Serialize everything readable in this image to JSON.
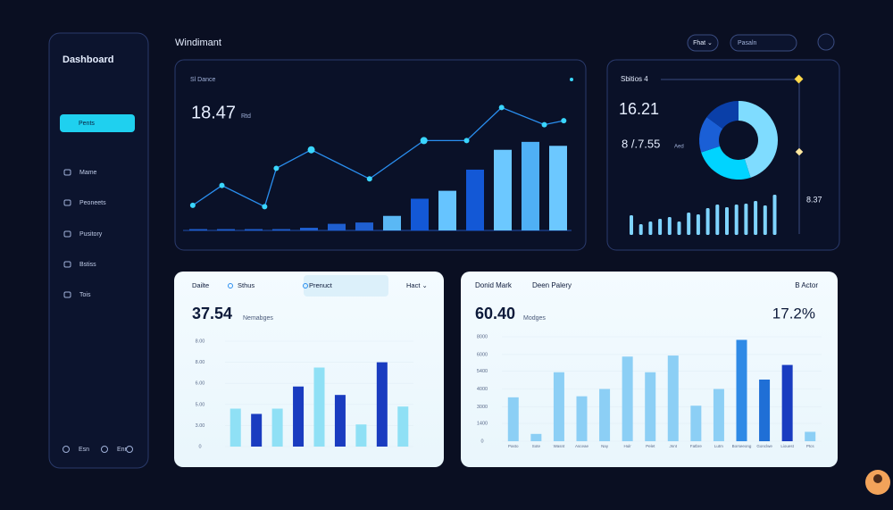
{
  "header": {
    "title": "Windimant",
    "filter": "Fhat ⌄",
    "search": "Pasaln"
  },
  "sidebar": {
    "title": "Dashboard",
    "items": [
      "Pents",
      "Mame",
      "Peoneets",
      "Pusitory",
      "Bstiss",
      "Tois"
    ],
    "footer": [
      "Esn",
      "Enr"
    ]
  },
  "overview": {
    "label": "Sl Dance",
    "value": "18.47",
    "unit": "Rtd",
    "bars": [
      1,
      1,
      1,
      1,
      2,
      5,
      6,
      11,
      24,
      30,
      46,
      61,
      67,
      64
    ],
    "bar_colors": [
      "#1f5fd0",
      "#1f5fd0",
      "#1f5fd0",
      "#1f5fd0",
      "#1f5fd0",
      "#1f5fd0",
      "#1f5fd0",
      "#5ab8f5",
      "#1358d6",
      "#66c4ff",
      "#1358d6",
      "#6cc8ff",
      "#4fb0f5",
      "#6cc8ff"
    ],
    "line": {
      "x": [
        2.5,
        10,
        21,
        24,
        33,
        48,
        62,
        73,
        82,
        93,
        98
      ],
      "y": [
        19,
        34,
        18,
        47,
        61,
        39,
        68,
        68,
        93,
        80,
        83
      ],
      "color": "#2a8ff0"
    }
  },
  "summary": {
    "label": "Sbitios 4",
    "value": "16.21",
    "secondary": "8 /.7.55",
    "unit": "Aed",
    "side": "8.37",
    "donut": [
      45,
      25,
      15,
      15
    ],
    "donut_colors": [
      "#7fdcff",
      "#00d4ff",
      "#1a5fd6",
      "#0a3fa8"
    ],
    "bars": [
      22,
      12,
      15,
      18,
      20,
      15,
      25,
      23,
      30,
      34,
      31,
      34,
      35,
      38,
      33,
      45
    ],
    "bar_color": "#7fd4ff"
  },
  "product": {
    "tabs": [
      "Dailte",
      "Sthus",
      "Prenuct",
      "Hact ⌄"
    ],
    "value": "37.54",
    "unit": "Nemabges",
    "ylim": [
      0,
      100
    ],
    "yticks": [
      {
        "value": 100,
        "label": "8.00"
      },
      {
        "value": 80,
        "label": "8.00"
      },
      {
        "value": 60,
        "label": "6.00"
      },
      {
        "value": 40,
        "label": "5.00"
      },
      {
        "value": 20,
        "label": "3.00"
      },
      0
    ],
    "values": [
      36,
      31,
      36,
      57,
      75,
      49,
      21,
      80,
      38
    ],
    "colors": [
      "#8fe0f5",
      "#1a3cc0",
      "#8fe0f5",
      "#1a3cc0",
      "#8fe0f5",
      "#1a3cc0",
      "#8fe0f5",
      "#1a3cc0",
      "#8fe0f5"
    ]
  },
  "market": {
    "title": "Donid Mark",
    "subtitle": "Deen Palery",
    "action": "B Actor",
    "value": "60.40",
    "unit": "Modges",
    "change": "17.2%",
    "ylim": [
      0,
      100
    ],
    "yticks": [
      {
        "value": 100,
        "label": "8000"
      },
      {
        "value": 83,
        "label": "6000"
      },
      {
        "value": 67,
        "label": "5400"
      },
      {
        "value": 50,
        "label": "4000"
      },
      {
        "value": 33,
        "label": "3000"
      },
      {
        "value": 17,
        "label": "1400"
      },
      0
    ],
    "categories": [
      "Pasto",
      "Sote",
      "Wasnt",
      "Asceae",
      "Nay",
      "Hulr",
      "Pelet",
      "Jnnt",
      "Fatbre",
      "Lutm",
      "Borseeong",
      "Gonclwe",
      "Liouest",
      "Ptcs"
    ],
    "values": [
      42,
      7,
      66,
      43,
      50,
      81,
      66,
      82,
      34,
      50,
      97,
      59,
      73,
      9
    ],
    "colors": [
      "#8ccff5",
      "#8ccff5",
      "#8ccff5",
      "#8ccff5",
      "#8ccff5",
      "#8ccff5",
      "#8ccff5",
      "#8ccff5",
      "#8ccff5",
      "#8ccff5",
      "#2f8ae6",
      "#1f6fd6",
      "#1a3cc0",
      "#8ccff5"
    ]
  }
}
